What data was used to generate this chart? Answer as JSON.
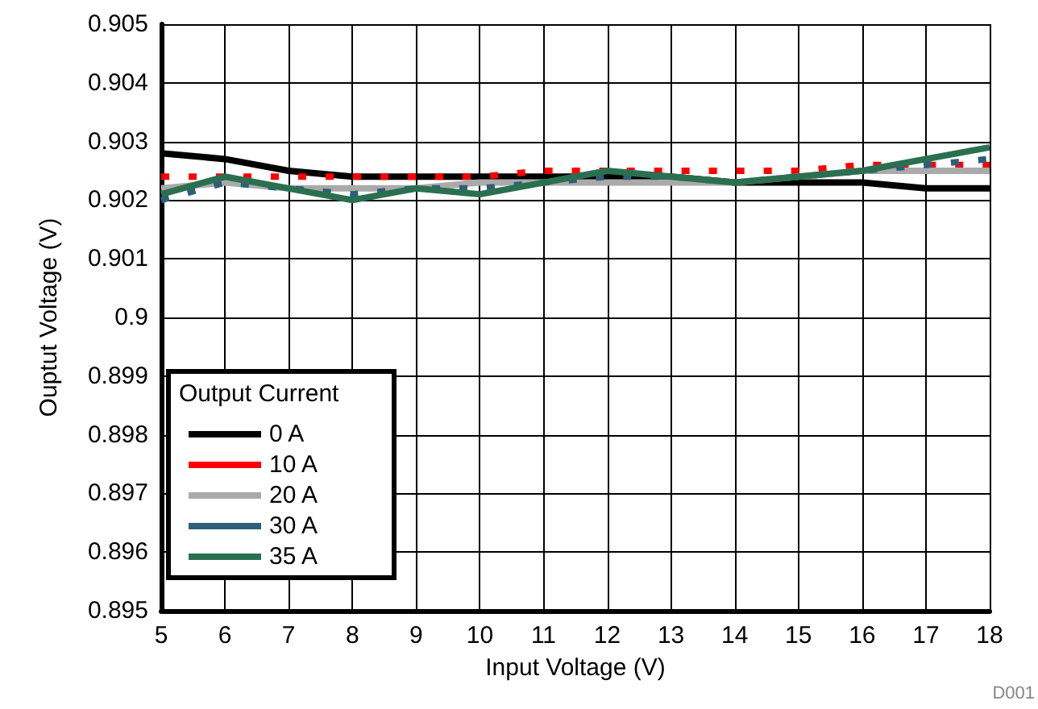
{
  "chart_data": {
    "type": "line",
    "xlabel": "Input Voltage (V)",
    "ylabel": "Ouptut Voltage (V)",
    "legend_title": "Output Current",
    "legend": "bottom left",
    "grid": true,
    "marker": "none",
    "x": [
      5,
      6,
      7,
      8,
      9,
      10,
      11,
      12,
      13,
      14,
      15,
      16,
      17,
      18
    ],
    "xlim": [
      5,
      18
    ],
    "xticks": [
      5,
      6,
      7,
      8,
      9,
      10,
      11,
      12,
      13,
      14,
      15,
      16,
      17,
      18
    ],
    "ylim": [
      0.895,
      0.905
    ],
    "yticks": [
      0.895,
      0.896,
      0.897,
      0.898,
      0.899,
      0.9,
      0.901,
      0.902,
      0.903,
      0.904,
      0.905
    ],
    "series": [
      {
        "name": "0 A",
        "color": "#000000",
        "line_style": "solid",
        "values": [
          0.9028,
          0.9027,
          0.9025,
          0.9024,
          0.9024,
          0.9024,
          0.9024,
          0.9024,
          0.9024,
          0.9023,
          0.9023,
          0.9023,
          0.9022,
          0.9022
        ]
      },
      {
        "name": "10 A",
        "color": "#ff0000",
        "line_style": "dotted",
        "values": [
          0.9024,
          0.9024,
          0.9024,
          0.9024,
          0.9024,
          0.9024,
          0.9025,
          0.9025,
          0.9025,
          0.9025,
          0.9025,
          0.9026,
          0.9026,
          0.9026
        ]
      },
      {
        "name": "20 A",
        "color": "#aaaaaa",
        "line_style": "solid",
        "values": [
          0.9022,
          0.9023,
          0.9022,
          0.9022,
          0.9022,
          0.9023,
          0.9023,
          0.9023,
          0.9023,
          0.9023,
          0.9024,
          0.9025,
          0.9025,
          0.9025
        ]
      },
      {
        "name": "30 A",
        "color": "#2e5f7a",
        "line_style": "dotted",
        "values": [
          0.902,
          0.9023,
          0.9022,
          0.9021,
          0.9022,
          0.9022,
          0.9023,
          0.9024,
          0.9024,
          0.9023,
          0.9024,
          0.9025,
          0.9026,
          0.9027
        ]
      },
      {
        "name": "35 A",
        "color": "#2a7050",
        "line_style": "solid",
        "values": [
          0.9021,
          0.9024,
          0.9022,
          0.902,
          0.9022,
          0.9021,
          0.9023,
          0.9025,
          0.9024,
          0.9023,
          0.9024,
          0.9025,
          0.9027,
          0.9029
        ]
      }
    ],
    "annotations": [
      "D001"
    ]
  }
}
